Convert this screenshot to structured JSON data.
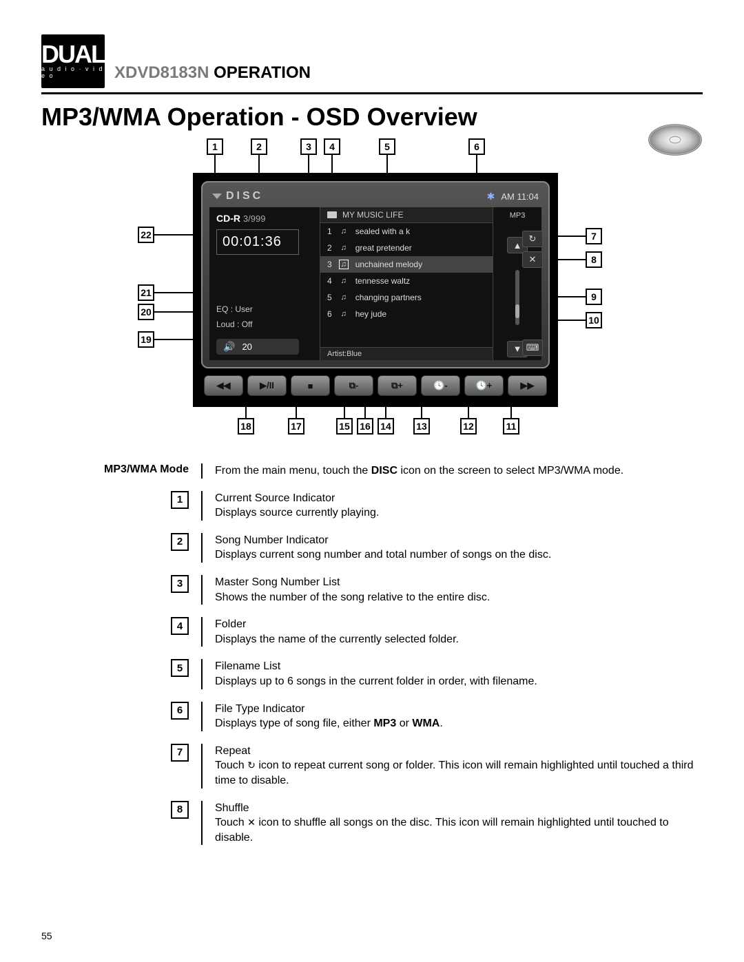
{
  "logo": {
    "main": "DUAL",
    "sub": "a u d i o · v i d e o"
  },
  "header": {
    "model": "XDVD8183N",
    "word": "OPERATION"
  },
  "section_title": "MP3/WMA Operation - OSD Overview",
  "page_number": "55",
  "device": {
    "source_label": "DISC",
    "clock": "AM 11:04",
    "disc_type": "CD-R",
    "track_counter": "3/999",
    "elapsed": "00:01:36",
    "eq_label": "EQ",
    "eq_value": ": User",
    "loud_label": "Loud",
    "loud_value": ": Off",
    "volume": "20",
    "folder_name": "MY  MUSIC LIFE",
    "file_type": "MP3",
    "artist_label": "Artist:Blue",
    "songs": [
      {
        "n": "1",
        "title": "sealed with a k"
      },
      {
        "n": "2",
        "title": "great pretender"
      },
      {
        "n": "3",
        "title": "unchained melody"
      },
      {
        "n": "4",
        "title": "tennesse waltz"
      },
      {
        "n": "5",
        "title": "changing partners"
      },
      {
        "n": "6",
        "title": "hey jude"
      }
    ],
    "selected_index": 2,
    "side_buttons": {
      "repeat": "↻",
      "shuffle": "✕",
      "keyboard": "⌨"
    },
    "bottom_buttons": [
      "◀◀",
      "▶/II",
      "■",
      "⧉-",
      "⧉+",
      "🕓-",
      "🕓+",
      "▶▶"
    ]
  },
  "callouts_top": [
    "1",
    "2",
    "3",
    "4",
    "5",
    "6"
  ],
  "callouts_right": [
    "7",
    "8",
    "9",
    "10"
  ],
  "callouts_left": [
    "22",
    "21",
    "20",
    "19"
  ],
  "callouts_bottom": [
    "18",
    "17",
    "15",
    "16",
    "14",
    "13",
    "12",
    "11"
  ],
  "mode_header": "MP3/WMA Mode",
  "mode_text_a": "From the main menu, touch the ",
  "mode_text_b": "DISC",
  "mode_text_c": " icon on the screen to select MP3/WMA mode.",
  "items": [
    {
      "n": "1",
      "title": "Current Source Indicator",
      "body": "Displays source currently playing."
    },
    {
      "n": "2",
      "title": "Song Number Indicator",
      "body": "Displays current song number and total number of songs on the disc."
    },
    {
      "n": "3",
      "title": "Master Song Number List",
      "body": "Shows the number of the song relative to the entire disc."
    },
    {
      "n": "4",
      "title": "Folder",
      "body": "Displays the name of the currently selected folder."
    },
    {
      "n": "5",
      "title": "Filename List",
      "body": "Displays up to 6 songs in the current folder in order, with filename."
    },
    {
      "n": "6",
      "title": "File Type Indicator",
      "body_a": "Displays type of song file, either ",
      "body_b": "MP3",
      "body_c": " or ",
      "body_d": "WMA",
      "body_e": "."
    },
    {
      "n": "7",
      "title": "Repeat",
      "body_a": "Touch ",
      "icon": "↻",
      "body_b": " icon to repeat current song or folder. This icon will remain highlighted until touched a third time to disable."
    },
    {
      "n": "8",
      "title": "Shuffle",
      "body_a": "Touch ",
      "icon": "✕",
      "body_b": " icon to shuffle all songs on the disc. This icon will remain highlighted until touched to disable."
    }
  ]
}
